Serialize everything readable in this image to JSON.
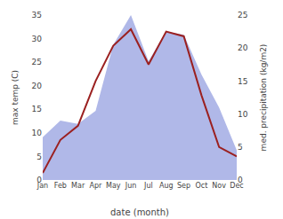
{
  "chart_data": {
    "type": "line",
    "xlabel": "date (month)",
    "ylabel": "max temp (C)",
    "y2label": "med. precipitation (kg/m2)",
    "categories": [
      "Jan",
      "Feb",
      "Mar",
      "Apr",
      "May",
      "Jun",
      "Jul",
      "Aug",
      "Sep",
      "Oct",
      "Nov",
      "Dec"
    ],
    "series": [
      {
        "type": "area",
        "axis": "y2",
        "color": "#b0b8e8",
        "values": [
          6.5,
          9.0,
          8.5,
          10.5,
          20.5,
          25.0,
          18.0,
          22.5,
          22.0,
          16.0,
          11.0,
          4.5
        ]
      },
      {
        "type": "line",
        "color": "#9b2020",
        "values": [
          1.5,
          8.5,
          11.5,
          21.0,
          28.5,
          32.0,
          24.5,
          31.5,
          30.5,
          18.0,
          7.0,
          5.0
        ]
      }
    ],
    "ylim": [
      0,
      35
    ],
    "yticks": [
      0,
      5,
      10,
      15,
      20,
      25,
      30,
      35
    ],
    "y2lim": [
      0,
      25
    ],
    "y2ticks": [
      0,
      5,
      10,
      15,
      20,
      25
    ],
    "grid": false
  }
}
